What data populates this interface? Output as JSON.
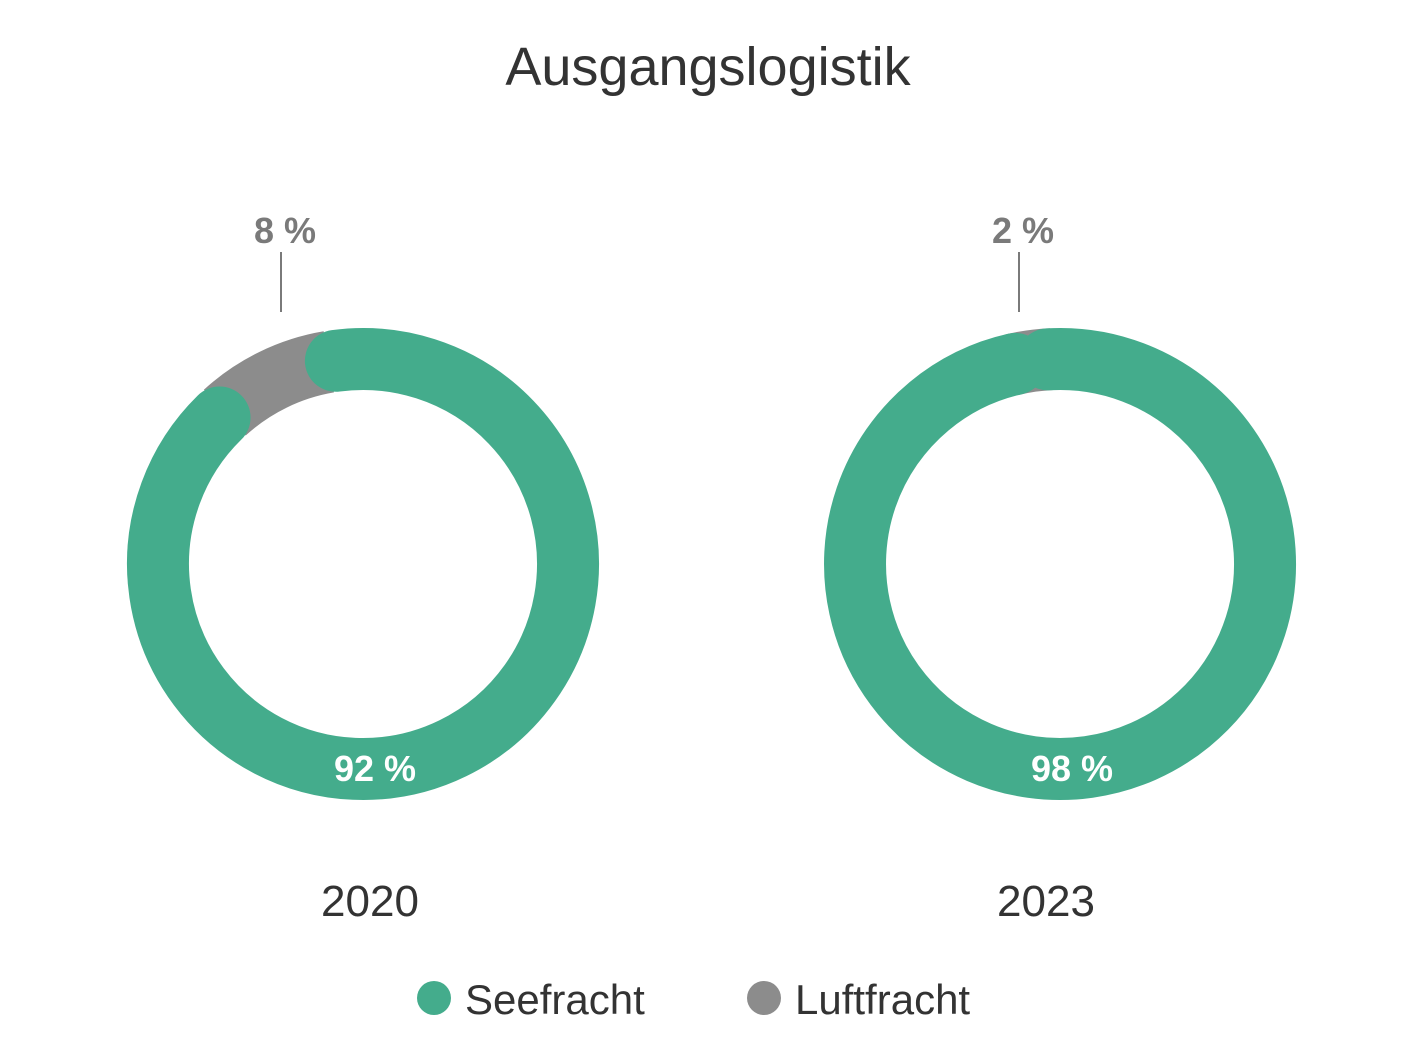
{
  "chart_data": {
    "type": "donut",
    "title": "Ausgangslogistik",
    "legend": {
      "placement": "bottom",
      "entries": [
        {
          "name": "Seefracht",
          "color": "#44ac8c"
        },
        {
          "name": "Luftfracht",
          "color": "#8c8c8c"
        }
      ]
    },
    "charts": [
      {
        "category": "2020",
        "slices": [
          {
            "name": "Seefracht",
            "value": 92,
            "label": "92 %"
          },
          {
            "name": "Luftfracht",
            "value": 8,
            "label": "8 %"
          }
        ]
      },
      {
        "category": "2023",
        "slices": [
          {
            "name": "Seefracht",
            "value": 98,
            "label": "98 %"
          },
          {
            "name": "Luftfracht",
            "value": 2,
            "label": "2 %"
          }
        ]
      }
    ]
  }
}
